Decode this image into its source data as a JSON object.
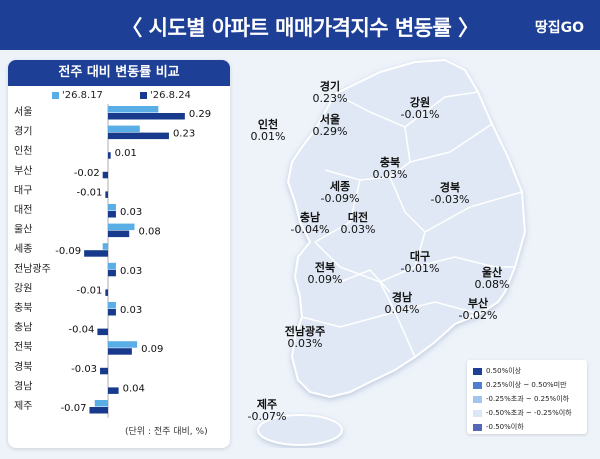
{
  "header": {
    "title": "〈 시도별 아파트 매매가격지수 변동률 〉",
    "brand": "땅집GO"
  },
  "panel": {
    "title": "전주 대비 변동률 비교",
    "unit_note": "(단위 : 전주 대비, %)"
  },
  "colors": {
    "accent": "#1d3f95",
    "prev": "#5aaee6",
    "curr": "#173a8c"
  },
  "chart_data": {
    "type": "bar",
    "orientation": "horizontal",
    "series": [
      {
        "name": "'26.8.17",
        "values": [
          0.19,
          0.12,
          0.0,
          0.0,
          0.0,
          0.03,
          0.1,
          -0.02,
          0.03,
          0.0,
          0.03,
          0.0,
          0.11,
          0.0,
          0.0,
          -0.05
        ]
      },
      {
        "name": "'26.8.24",
        "values": [
          0.29,
          0.23,
          0.01,
          -0.02,
          -0.01,
          0.03,
          0.08,
          -0.09,
          0.03,
          -0.01,
          0.03,
          -0.04,
          0.09,
          -0.03,
          0.04,
          -0.07
        ]
      }
    ],
    "categories": [
      "서울",
      "경기",
      "인천",
      "부산",
      "대구",
      "대전",
      "울산",
      "세종",
      "전남광주",
      "강원",
      "충북",
      "충남",
      "전북",
      "경북",
      "경남",
      "제주"
    ],
    "labels": [
      "0.29",
      "0.23",
      "0.01",
      "-0.02",
      "-0.01",
      "0.03",
      "0.08",
      "-0.09",
      "0.03",
      "-0.01",
      "0.03",
      "-0.04",
      "0.09",
      "-0.03",
      "0.04",
      "-0.07"
    ]
  },
  "map": {
    "regions": [
      {
        "name": "경기",
        "value": "0.23%"
      },
      {
        "name": "강원",
        "value": "-0.01%"
      },
      {
        "name": "인천",
        "value": "0.01%"
      },
      {
        "name": "서울",
        "value": "0.29%"
      },
      {
        "name": "충북",
        "value": "0.03%"
      },
      {
        "name": "세종",
        "value": "-0.09%"
      },
      {
        "name": "경북",
        "value": "-0.03%"
      },
      {
        "name": "충남",
        "value": "-0.04%"
      },
      {
        "name": "대전",
        "value": "0.03%"
      },
      {
        "name": "대구",
        "value": "-0.01%"
      },
      {
        "name": "전북",
        "value": "0.09%"
      },
      {
        "name": "울산",
        "value": "0.08%"
      },
      {
        "name": "경남",
        "value": "0.04%"
      },
      {
        "name": "부산",
        "value": "-0.02%"
      },
      {
        "name": "전남광주",
        "value": "0.03%"
      },
      {
        "name": "제주",
        "value": "-0.07%"
      }
    ],
    "legend": [
      {
        "label": "0.50%이상",
        "color": "#1d3f95"
      },
      {
        "label": "0.25%이상 ~ 0.50%미만",
        "color": "#4f7ed0"
      },
      {
        "label": "-0.25%초과 ~ 0.25%이하",
        "color": "#9fc6ec"
      },
      {
        "label": "-0.50%초과 ~ -0.25%이하",
        "color": "#dbe7f6"
      },
      {
        "label": "-0.50%이하",
        "color": "#5468b5"
      }
    ]
  }
}
